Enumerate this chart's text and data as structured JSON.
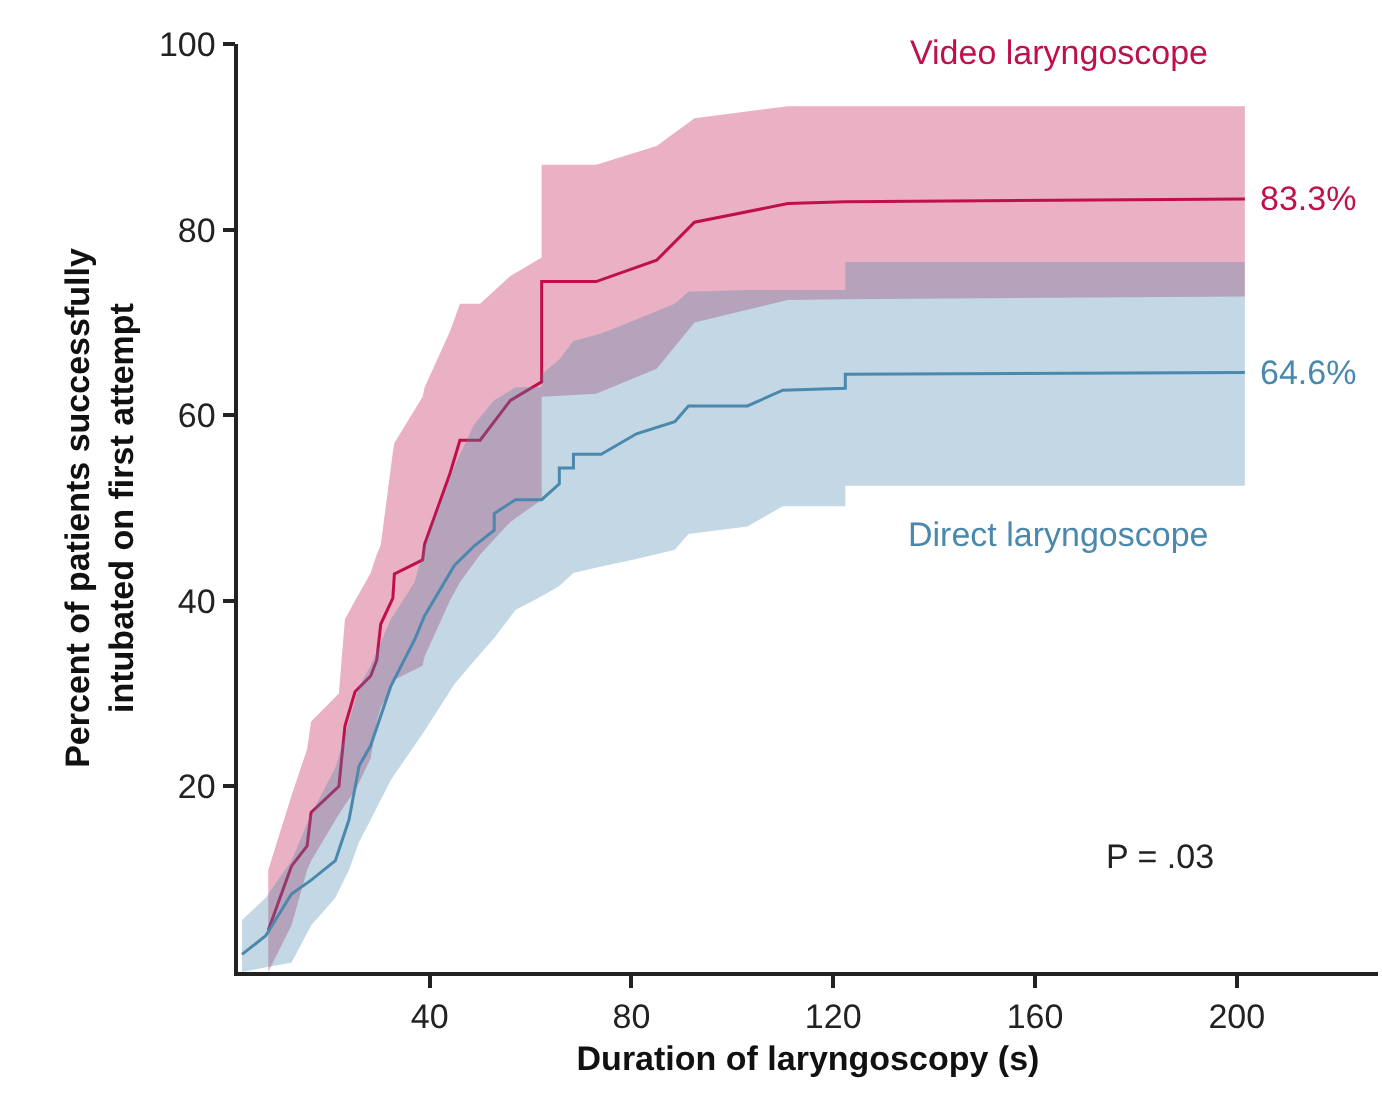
{
  "chart_data": {
    "type": "line",
    "xlabel": "Duration of laryngoscopy (s)",
    "ylabel": "Percent of patients successfully\nintubated on first attempt",
    "xlim": [
      2,
      228
    ],
    "ylim": [
      0,
      100
    ],
    "xticks": [
      40,
      80,
      120,
      160,
      200
    ],
    "yticks": [
      20,
      40,
      60,
      80,
      100
    ],
    "legend": false,
    "marker": "none",
    "line_style": "solid",
    "annotations": [
      "P = .03"
    ],
    "series": [
      {
        "name": "Video laryngoscope",
        "color": "#c0104a",
        "x": [
          8,
          12.6,
          15.7,
          16.5,
          22,
          23.2,
          25.2,
          28.3,
          29.5,
          30.3,
          32.7,
          33,
          38.6,
          39,
          44,
          46,
          50,
          56,
          62.2,
          62.2,
          73,
          85,
          92.5,
          111,
          122.4,
          201.6
        ],
        "values": [
          4.5,
          11.4,
          13.6,
          17.2,
          20,
          26.5,
          30.2,
          31.9,
          33.6,
          37.5,
          40.3,
          42.9,
          44.4,
          46.1,
          53.7,
          57.3,
          57.3,
          61.6,
          63.6,
          74.4,
          74.4,
          76.7,
          80.8,
          82.8,
          83,
          83.3
        ],
        "upper": [
          11,
          19,
          24,
          27,
          30,
          38,
          40,
          43,
          45,
          46,
          56,
          57,
          62,
          63,
          69,
          72,
          72,
          75,
          77,
          87,
          87,
          89,
          92,
          93.3,
          93.3,
          93.3
        ],
        "lower": [
          0,
          5,
          11,
          12,
          17,
          18,
          19.5,
          23,
          27,
          28.5,
          31,
          31.5,
          33,
          34,
          40,
          42,
          45,
          48.5,
          50.9,
          62,
          62.3,
          65,
          70,
          72.4,
          72.5,
          72.8
        ],
        "value_labels": [
          null,
          null,
          null,
          null,
          null,
          null,
          null,
          null,
          null,
          null,
          null,
          null,
          null,
          null,
          null,
          null,
          null,
          null,
          null,
          null,
          null,
          null,
          null,
          null,
          null,
          "83.3%"
        ]
      },
      {
        "name": "Direct laryngoscope",
        "color": "#4a88ad",
        "x": [
          2.8,
          7.5,
          12.6,
          16.5,
          21.3,
          24,
          26,
          28.3,
          32.3,
          37,
          39,
          44.9,
          48.8,
          52.8,
          52.8,
          57,
          62.2,
          62.2,
          65.7,
          65.7,
          68.5,
          68.5,
          74,
          81,
          88.6,
          91.3,
          103,
          110,
          122.4,
          122.4,
          201.6
        ],
        "values": [
          1.9,
          3.9,
          8.4,
          9.9,
          12,
          16.4,
          22.2,
          24.4,
          30.8,
          35.8,
          38.4,
          43.8,
          45.9,
          47.6,
          49.4,
          50.9,
          50.9,
          50.9,
          52.6,
          54.3,
          54.3,
          55.8,
          55.8,
          58,
          59.3,
          61,
          61,
          62.7,
          62.9,
          64.4,
          64.6
        ],
        "upper": [
          5.6,
          8,
          12,
          17,
          22,
          27,
          30.8,
          33,
          38,
          42,
          46,
          54.5,
          59,
          61.6,
          61.6,
          63,
          63,
          64.4,
          66,
          66,
          68,
          68,
          68.8,
          70.3,
          72,
          73.3,
          73.5,
          73.5,
          73.5,
          76.5,
          76.5
        ],
        "lower": [
          0,
          0.5,
          1,
          5,
          8,
          11,
          14,
          16.4,
          20.7,
          24.4,
          26,
          31,
          33.5,
          36,
          36,
          39,
          40.5,
          40.5,
          41.6,
          41.6,
          43,
          43,
          43.7,
          44.5,
          45.5,
          47.2,
          48,
          50.2,
          50.2,
          52.4,
          52.4
        ],
        "value_labels": [
          null,
          null,
          null,
          null,
          null,
          null,
          null,
          null,
          null,
          null,
          null,
          null,
          null,
          null,
          null,
          null,
          null,
          null,
          null,
          null,
          null,
          null,
          null,
          null,
          null,
          null,
          null,
          null,
          null,
          null,
          "64.6%"
        ]
      }
    ]
  }
}
